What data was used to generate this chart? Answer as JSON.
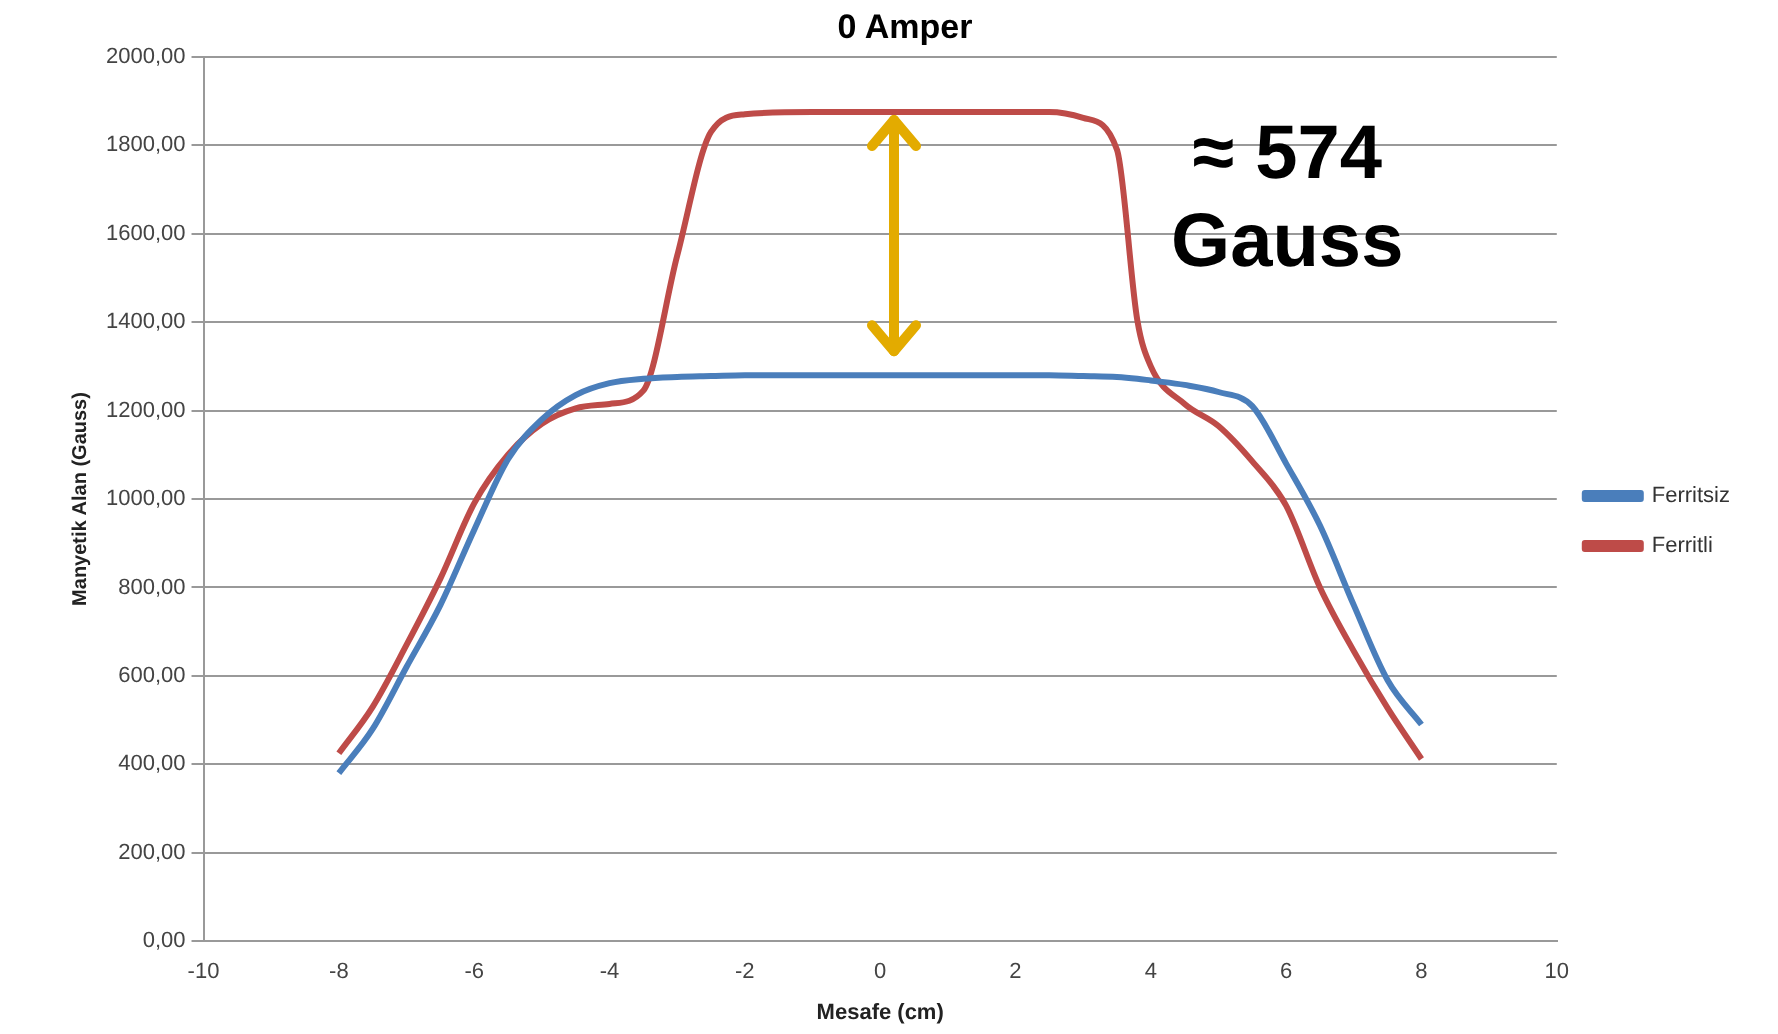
{
  "chart_data": {
    "type": "line",
    "title": "0 Amper",
    "xlabel": "Mesafe (cm)",
    "ylabel": "Manyetik Alan (Gauss)",
    "x": [
      -8,
      -7.5,
      -7,
      -6.5,
      -6,
      -5.5,
      -5,
      -4.5,
      -4,
      -3.5,
      -3,
      -2.5,
      -2,
      -1,
      0,
      1,
      2,
      2.5,
      3,
      3.5,
      3.8,
      4,
      4.5,
      5,
      5.5,
      6,
      6.5,
      7,
      7.5,
      8
    ],
    "series": [
      {
        "name": "Ferritsiz",
        "color": "#4a7ebb",
        "values": [
          380,
          480,
          620,
          760,
          930,
          1090,
          1180,
          1235,
          1262,
          1272,
          1276,
          1278,
          1280,
          1280,
          1280,
          1280,
          1280,
          1280,
          1278,
          1276,
          1272,
          1268,
          1258,
          1242,
          1210,
          1080,
          940,
          760,
          590,
          490
        ]
      },
      {
        "name": "Ferritli",
        "color": "#be4b48",
        "values": [
          425,
          530,
          670,
          820,
          990,
          1100,
          1170,
          1205,
          1215,
          1245,
          1550,
          1830,
          1870,
          1875,
          1875,
          1875,
          1875,
          1875,
          1862,
          1790,
          1405,
          1300,
          1215,
          1165,
          1085,
          985,
          800,
          656,
          527,
          412
        ]
      }
    ],
    "xlim": [
      -10,
      10
    ],
    "xticks": [
      -10,
      -8,
      -6,
      -4,
      -2,
      0,
      2,
      4,
      6,
      8,
      10
    ],
    "ylim": [
      0,
      2000
    ],
    "yticks": [
      {
        "value": 0,
        "label": "0,00"
      },
      {
        "value": 200,
        "label": "200,00"
      },
      {
        "value": 400,
        "label": "400,00"
      },
      {
        "value": 600,
        "label": "600,00"
      },
      {
        "value": 800,
        "label": "800,00"
      },
      {
        "value": 1000,
        "label": "1000,00"
      },
      {
        "value": 1200,
        "label": "1200,00"
      },
      {
        "value": 1400,
        "label": "1400,00"
      },
      {
        "value": 1600,
        "label": "1600,00"
      },
      {
        "value": 1800,
        "label": "1800,00"
      },
      {
        "value": 2000,
        "label": "2000,00"
      }
    ],
    "annotations": [
      "≈ 574 Gauss"
    ],
    "grid": "y",
    "legend": "right",
    "marker": "none",
    "line_style": "solid"
  }
}
